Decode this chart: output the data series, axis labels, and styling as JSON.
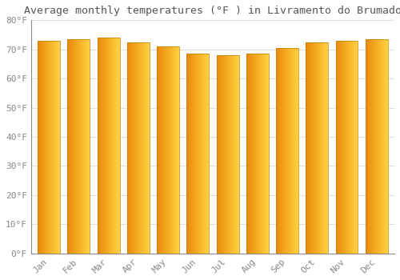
{
  "title": "Average monthly temperatures (°F ) in Livramento do Brumado",
  "months": [
    "Jan",
    "Feb",
    "Mar",
    "Apr",
    "May",
    "Jun",
    "Jul",
    "Aug",
    "Sep",
    "Oct",
    "Nov",
    "Dec"
  ],
  "values": [
    73.0,
    73.5,
    74.0,
    72.5,
    71.0,
    68.5,
    68.0,
    68.5,
    70.5,
    72.5,
    73.0,
    73.5
  ],
  "bar_color_left": "#E8890A",
  "bar_color_right": "#FFD050",
  "bar_edge_color": "#C87800",
  "background_color": "#FFFFFF",
  "grid_color": "#DDDDDD",
  "text_color": "#888888",
  "ylim": [
    0,
    80
  ],
  "yticks": [
    0,
    10,
    20,
    30,
    40,
    50,
    60,
    70,
    80
  ],
  "ytick_labels": [
    "0°F",
    "10°F",
    "20°F",
    "30°F",
    "40°F",
    "50°F",
    "60°F",
    "70°F",
    "80°F"
  ],
  "title_fontsize": 9.5,
  "tick_fontsize": 8,
  "title_color": "#555555",
  "bar_width": 0.75
}
